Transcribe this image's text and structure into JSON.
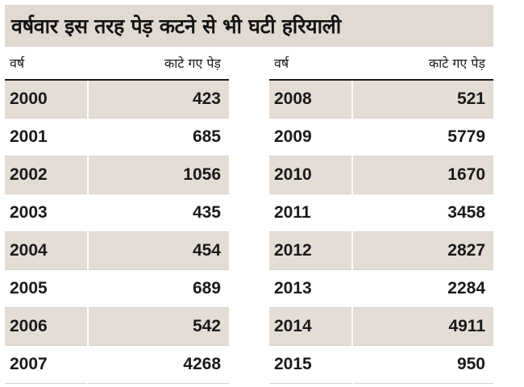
{
  "title": "वर्षवार इस तरह पेड़ कटने से भी घटी हरियाली",
  "header": {
    "year": "वर्ष",
    "trees_cut": "काटे गए पेड़"
  },
  "colors": {
    "title_bg": "#e0dad3",
    "row_shade": "#e3ddd6",
    "text": "#1a1a1a"
  },
  "chart_data": {
    "type": "table",
    "title": "वर्षवार इस तरह पेड़ कटने से भी घटी हरियाली",
    "columns": [
      "वर्ष",
      "काटे गए पेड़"
    ],
    "left": [
      {
        "year": "2000",
        "value": "423"
      },
      {
        "year": "2001",
        "value": "685"
      },
      {
        "year": "2002",
        "value": "1056"
      },
      {
        "year": "2003",
        "value": "435"
      },
      {
        "year": "2004",
        "value": "454"
      },
      {
        "year": "2005",
        "value": "689"
      },
      {
        "year": "2006",
        "value": "542"
      },
      {
        "year": "2007",
        "value": "4268"
      }
    ],
    "right": [
      {
        "year": "2008",
        "value": "521"
      },
      {
        "year": "2009",
        "value": "5779"
      },
      {
        "year": "2010",
        "value": "1670"
      },
      {
        "year": "2011",
        "value": "3458"
      },
      {
        "year": "2012",
        "value": "2827"
      },
      {
        "year": "2013",
        "value": "2284"
      },
      {
        "year": "2014",
        "value": "4911"
      },
      {
        "year": "2015",
        "value": "950"
      }
    ]
  }
}
